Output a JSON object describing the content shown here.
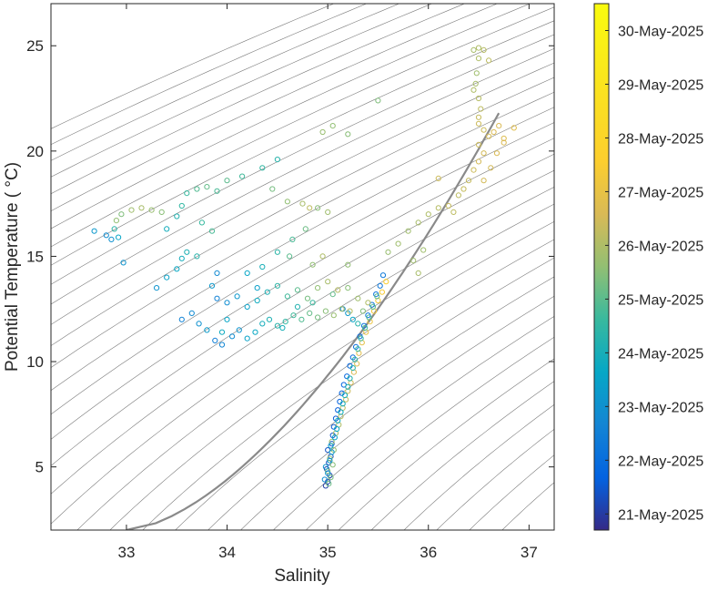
{
  "chart_data": {
    "type": "scatter",
    "title": "",
    "xlabel": "Salinity",
    "ylabel": "Potential Temperature ( °C)",
    "xlim": [
      32.25,
      37.25
    ],
    "ylim": [
      2,
      27
    ],
    "xticks": [
      33,
      34,
      35,
      36,
      37
    ],
    "yticks": [
      5,
      10,
      15,
      20,
      25
    ],
    "grid": false,
    "background_isolines": "density contours (thin grey), one highlighted contour (thick grey)",
    "colorbar": {
      "position": "right",
      "colormap": "parula",
      "tick_labels": [
        "21-May-2025",
        "22-May-2025",
        "23-May-2025",
        "24-May-2025",
        "25-May-2025",
        "26-May-2025",
        "27-May-2025",
        "28-May-2025",
        "29-May-2025",
        "30-May-2025"
      ],
      "range_days": [
        20.7,
        30.5
      ]
    },
    "series": [
      {
        "group": "deep-core (S, theta, day)",
        "points": [
          [
            34.98,
            4.1,
            0.05
          ],
          [
            35.0,
            4.3,
            0.1
          ],
          [
            35.02,
            4.6,
            0.15
          ],
          [
            34.99,
            4.9,
            0.2
          ],
          [
            35.01,
            5.2,
            0.25
          ],
          [
            35.03,
            5.5,
            0.3
          ],
          [
            35.0,
            5.8,
            0.35
          ],
          [
            35.04,
            6.1,
            0.4
          ],
          [
            35.05,
            6.5,
            0.45
          ],
          [
            35.06,
            6.9,
            0.5
          ],
          [
            35.08,
            7.3,
            0.55
          ],
          [
            35.1,
            7.7,
            0.6
          ],
          [
            35.12,
            8.1,
            0.65
          ],
          [
            35.14,
            8.5,
            0.7
          ],
          [
            35.16,
            8.9,
            0.75
          ],
          [
            35.19,
            9.3,
            0.8
          ],
          [
            35.22,
            9.8,
            0.85
          ],
          [
            35.25,
            10.2,
            0.9
          ],
          [
            35.28,
            10.7,
            0.95
          ],
          [
            35.32,
            11.2,
            1.0
          ],
          [
            35.36,
            11.7,
            1.05
          ],
          [
            35.4,
            12.2,
            1.1
          ],
          [
            35.44,
            12.7,
            1.15
          ],
          [
            35.48,
            13.2,
            1.2
          ],
          [
            35.52,
            13.6,
            1.25
          ],
          [
            35.55,
            14.1,
            1.3
          ],
          [
            35.01,
            4.2,
            4.2
          ],
          [
            35.03,
            4.5,
            4.3
          ],
          [
            35.0,
            4.8,
            4.4
          ],
          [
            35.05,
            5.1,
            4.5
          ],
          [
            35.02,
            5.4,
            4.6
          ],
          [
            35.06,
            5.8,
            4.7
          ],
          [
            35.04,
            6.2,
            4.8
          ],
          [
            35.08,
            6.6,
            4.9
          ],
          [
            35.11,
            7.0,
            5.0
          ],
          [
            35.13,
            7.4,
            5.1
          ],
          [
            35.15,
            7.8,
            5.2
          ],
          [
            35.18,
            8.2,
            5.3
          ],
          [
            35.2,
            8.6,
            5.4
          ],
          [
            35.23,
            9.0,
            5.5
          ],
          [
            35.26,
            9.5,
            5.6
          ],
          [
            35.29,
            9.9,
            5.7
          ],
          [
            35.31,
            10.4,
            5.8
          ],
          [
            35.34,
            10.9,
            5.9
          ],
          [
            35.38,
            11.4,
            6.0
          ],
          [
            35.42,
            11.9,
            6.1
          ],
          [
            35.46,
            12.4,
            6.2
          ],
          [
            35.5,
            12.9,
            6.3
          ],
          [
            35.54,
            13.3,
            6.4
          ],
          [
            35.58,
            13.8,
            6.5
          ],
          [
            34.97,
            4.4,
            1.9
          ],
          [
            35.0,
            4.7,
            2.0
          ],
          [
            34.98,
            5.0,
            2.1
          ],
          [
            35.02,
            5.3,
            2.2
          ],
          [
            35.04,
            5.7,
            2.3
          ],
          [
            35.03,
            6.0,
            2.4
          ],
          [
            35.07,
            6.4,
            2.5
          ],
          [
            35.09,
            6.8,
            2.6
          ],
          [
            35.1,
            7.2,
            2.7
          ],
          [
            35.13,
            7.6,
            2.8
          ],
          [
            35.15,
            8.0,
            2.9
          ],
          [
            35.17,
            8.4,
            3.0
          ],
          [
            35.2,
            8.8,
            3.1
          ],
          [
            35.22,
            9.2,
            3.2
          ],
          [
            35.25,
            9.7,
            3.3
          ],
          [
            35.27,
            10.1,
            3.4
          ],
          [
            35.3,
            10.6,
            3.5
          ],
          [
            35.33,
            11.1,
            3.6
          ],
          [
            35.37,
            11.6,
            3.7
          ],
          [
            35.41,
            12.1,
            3.8
          ],
          [
            35.45,
            12.6,
            3.9
          ],
          [
            35.49,
            13.1,
            4.0
          ],
          [
            35.3,
            11.8,
            3.3
          ],
          [
            35.25,
            12.0,
            2.6
          ],
          [
            35.2,
            12.3,
            2.2
          ],
          [
            35.35,
            12.4,
            4.4
          ],
          [
            35.4,
            12.8,
            5.0
          ],
          [
            35.15,
            12.5,
            1.8
          ]
        ]
      },
      {
        "group": "shallow-band (S, theta, day)",
        "points": [
          [
            32.68,
            16.2,
            2.2
          ],
          [
            32.8,
            16.0,
            1.9
          ],
          [
            32.85,
            15.8,
            2.0
          ],
          [
            32.88,
            16.3,
            3.4
          ],
          [
            32.92,
            15.9,
            2.6
          ],
          [
            32.95,
            17.0,
            4.4
          ],
          [
            32.9,
            16.7,
            4.6
          ],
          [
            33.05,
            17.2,
            4.8
          ],
          [
            33.15,
            17.3,
            4.9
          ],
          [
            33.25,
            17.2,
            4.7
          ],
          [
            33.35,
            17.1,
            4.5
          ],
          [
            32.97,
            14.7,
            2.1
          ],
          [
            33.4,
            16.3,
            2.9
          ],
          [
            33.5,
            16.9,
            3.2
          ],
          [
            33.55,
            17.4,
            3.5
          ],
          [
            33.6,
            18.0,
            3.6
          ],
          [
            33.7,
            18.2,
            3.9
          ],
          [
            33.8,
            18.3,
            4.1
          ],
          [
            33.9,
            18.1,
            3.8
          ],
          [
            34.0,
            18.6,
            4.0
          ],
          [
            34.15,
            18.8,
            3.7
          ],
          [
            34.35,
            19.2,
            3.5
          ],
          [
            34.5,
            19.6,
            3.3
          ],
          [
            34.45,
            18.2,
            4.3
          ],
          [
            34.6,
            17.6,
            4.6
          ],
          [
            34.75,
            17.5,
            4.9
          ],
          [
            34.82,
            17.3,
            5.2
          ],
          [
            33.3,
            13.5,
            2.1
          ],
          [
            33.4,
            14.0,
            2.5
          ],
          [
            33.5,
            14.4,
            2.7
          ],
          [
            33.55,
            14.9,
            2.9
          ],
          [
            33.6,
            15.2,
            3.1
          ],
          [
            33.7,
            15.0,
            3.3
          ],
          [
            33.75,
            16.6,
            3.6
          ],
          [
            33.85,
            16.2,
            3.8
          ],
          [
            33.55,
            12.0,
            1.6
          ],
          [
            33.65,
            12.3,
            1.8
          ],
          [
            33.72,
            11.8,
            2.0
          ],
          [
            33.8,
            11.5,
            2.3
          ],
          [
            33.88,
            11.0,
            1.5
          ],
          [
            33.95,
            10.8,
            1.7
          ],
          [
            34.05,
            11.2,
            1.9
          ],
          [
            34.12,
            11.5,
            2.1
          ],
          [
            34.2,
            11.1,
            2.5
          ],
          [
            34.28,
            11.4,
            2.7
          ],
          [
            34.35,
            11.8,
            2.9
          ],
          [
            34.42,
            12.0,
            3.1
          ],
          [
            34.5,
            11.7,
            3.3
          ],
          [
            34.58,
            11.9,
            3.5
          ],
          [
            34.66,
            12.2,
            3.7
          ],
          [
            34.74,
            12.0,
            3.9
          ],
          [
            34.82,
            12.3,
            4.1
          ],
          [
            34.9,
            12.1,
            4.3
          ],
          [
            34.98,
            12.4,
            4.5
          ],
          [
            35.06,
            12.2,
            4.7
          ],
          [
            35.14,
            12.5,
            4.9
          ],
          [
            35.22,
            12.4,
            5.1
          ],
          [
            33.9,
            13.0,
            1.6
          ],
          [
            34.0,
            12.8,
            1.9
          ],
          [
            34.1,
            13.1,
            2.2
          ],
          [
            34.2,
            12.6,
            2.5
          ],
          [
            34.3,
            12.9,
            2.8
          ],
          [
            34.4,
            13.3,
            3.1
          ],
          [
            34.5,
            13.6,
            3.4
          ],
          [
            34.6,
            13.1,
            3.7
          ],
          [
            34.7,
            13.4,
            4.0
          ],
          [
            34.8,
            13.0,
            4.3
          ],
          [
            34.9,
            13.5,
            4.6
          ],
          [
            35.0,
            13.8,
            4.9
          ],
          [
            35.1,
            13.4,
            5.1
          ],
          [
            34.2,
            14.2,
            2.6
          ],
          [
            34.35,
            14.5,
            3.0
          ],
          [
            34.5,
            15.2,
            3.4
          ],
          [
            34.65,
            15.8,
            3.8
          ],
          [
            34.78,
            16.3,
            4.2
          ],
          [
            34.62,
            15.0,
            4.0
          ],
          [
            34.85,
            14.6,
            4.6
          ],
          [
            34.95,
            15.0,
            5.0
          ],
          [
            33.9,
            14.2,
            1.8
          ],
          [
            33.85,
            13.6,
            2.2
          ],
          [
            34.3,
            13.5,
            2.4
          ],
          [
            34.0,
            12.0,
            2.6
          ],
          [
            33.95,
            11.4,
            2.8
          ],
          [
            34.55,
            11.6,
            3.0
          ],
          [
            34.7,
            12.6,
            3.2
          ],
          [
            34.85,
            12.8,
            3.6
          ],
          [
            35.05,
            13.2,
            4.1
          ],
          [
            35.2,
            13.5,
            4.5
          ],
          [
            35.3,
            13.0,
            4.8
          ]
        ]
      },
      {
        "group": "surface-branch (S, theta, day)",
        "points": [
          [
            34.95,
            20.9,
            4.7
          ],
          [
            35.05,
            21.2,
            4.6
          ],
          [
            35.2,
            20.8,
            4.5
          ],
          [
            34.9,
            17.3,
            4.5
          ],
          [
            35.0,
            17.1,
            4.8
          ],
          [
            35.5,
            22.4,
            4.4
          ],
          [
            35.2,
            14.6,
            4.6
          ],
          [
            35.9,
            14.2,
            4.9
          ],
          [
            36.45,
            24.8,
            4.9
          ],
          [
            36.5,
            24.9,
            5.0
          ],
          [
            36.55,
            24.8,
            5.1
          ],
          [
            36.5,
            24.4,
            5.0
          ],
          [
            36.6,
            24.3,
            5.2
          ],
          [
            36.48,
            23.7,
            4.8
          ],
          [
            36.47,
            23.2,
            4.9
          ],
          [
            36.45,
            22.9,
            5.0
          ],
          [
            36.5,
            22.5,
            5.1
          ],
          [
            36.52,
            22.0,
            5.2
          ],
          [
            36.5,
            21.6,
            5.3
          ],
          [
            36.5,
            21.3,
            5.4
          ],
          [
            36.55,
            21.0,
            5.4
          ],
          [
            36.6,
            20.7,
            5.5
          ],
          [
            36.65,
            20.9,
            5.6
          ],
          [
            36.7,
            21.2,
            5.6
          ],
          [
            36.75,
            20.6,
            5.7
          ],
          [
            36.85,
            21.1,
            5.8
          ],
          [
            36.75,
            20.4,
            5.6
          ],
          [
            36.5,
            20.3,
            5.4
          ],
          [
            36.55,
            19.9,
            5.5
          ],
          [
            36.5,
            19.5,
            5.5
          ],
          [
            36.45,
            19.1,
            5.4
          ],
          [
            36.4,
            18.6,
            5.3
          ],
          [
            36.35,
            18.2,
            5.3
          ],
          [
            36.3,
            17.9,
            5.2
          ],
          [
            36.1,
            17.3,
            5.1
          ],
          [
            36.0,
            17.0,
            5.0
          ],
          [
            35.9,
            16.6,
            4.9
          ],
          [
            35.8,
            16.2,
            4.8
          ],
          [
            35.7,
            15.6,
            4.8
          ],
          [
            35.6,
            15.2,
            4.7
          ],
          [
            36.2,
            17.4,
            5.3
          ],
          [
            36.25,
            17.1,
            5.2
          ],
          [
            35.95,
            15.3,
            4.8
          ],
          [
            35.85,
            14.8,
            4.8
          ],
          [
            36.1,
            18.7,
            5.4
          ],
          [
            36.68,
            19.9,
            5.6
          ],
          [
            36.62,
            19.2,
            5.5
          ],
          [
            36.55,
            18.6,
            5.5
          ]
        ]
      }
    ]
  }
}
